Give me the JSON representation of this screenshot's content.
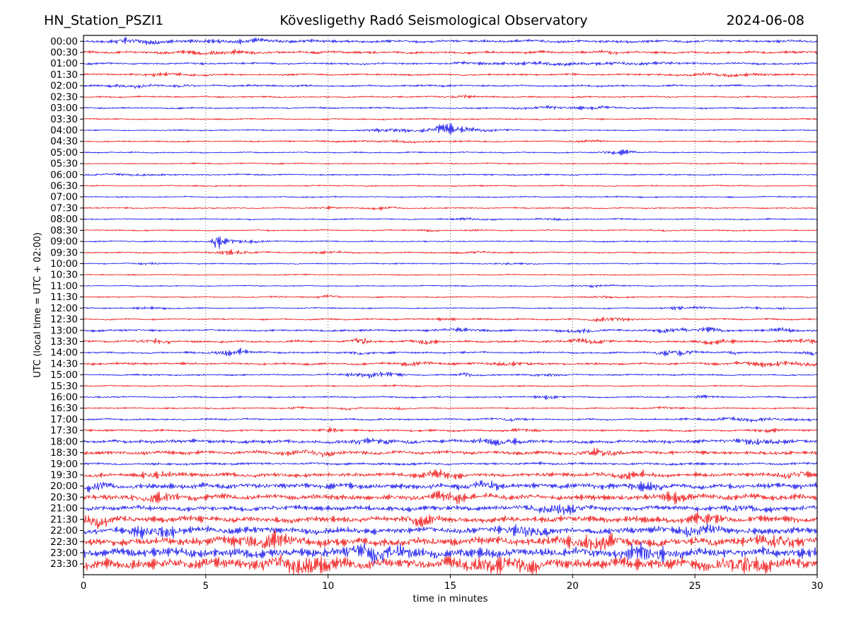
{
  "header": {
    "station": "HN_Station_PSZI1",
    "observatory": "Kövesligethy Radó Seismological Observatory",
    "date": "2024-06-08"
  },
  "chart_data": {
    "type": "line",
    "subtype": "helicorder-seismogram-drum-plot",
    "title": "HN_Station_PSZI1 | Kövesligethy Radó Seismological Observatory | 2024-06-08",
    "xlabel": "time in minutes",
    "ylabel": "UTC (local time = UTC + 02:00)",
    "xlim": [
      0,
      30
    ],
    "xticks": [
      0,
      5,
      10,
      15,
      20,
      25,
      30
    ],
    "grid": {
      "vertical_dotted_at_minutes": [
        5,
        10,
        15,
        20,
        25
      ]
    },
    "minutes_per_row": 30,
    "trace_colors": {
      "blue": "#0000ee",
      "red": "#ee0000"
    },
    "frame_color": "#000000",
    "amplitude_note": "amp = baseline noise half-amplitude (px at 34.6 px/min). events = transient seismic bursts {t: center minute, a: extra amplitude px, w: sigma minutes}",
    "rows": [
      {
        "label": "00:00",
        "color": "blue",
        "amp": 1.8,
        "events": [
          {
            "t": 1.6,
            "a": 2.0,
            "w": 0.4
          },
          {
            "t": 2.7,
            "a": 2.2,
            "w": 0.5
          },
          {
            "t": 6.5,
            "a": 1.2,
            "w": 2.0
          }
        ]
      },
      {
        "label": "00:30",
        "color": "red",
        "amp": 1.7,
        "events": [
          {
            "t": 5.3,
            "a": 1.6,
            "w": 1.2
          },
          {
            "t": 21.5,
            "a": 1.8,
            "w": 0.3
          }
        ]
      },
      {
        "label": "01:00",
        "color": "blue",
        "amp": 1.4,
        "events": [
          {
            "t": 20.0,
            "a": 1.2,
            "w": 3.0
          }
        ]
      },
      {
        "label": "01:30",
        "color": "red",
        "amp": 1.2,
        "events": [
          {
            "t": 3.5,
            "a": 1.4,
            "w": 1.0
          },
          {
            "t": 26.0,
            "a": 1.4,
            "w": 1.5
          }
        ]
      },
      {
        "label": "02:00",
        "color": "blue",
        "amp": 1.3,
        "events": [
          {
            "t": 2.2,
            "a": 1.6,
            "w": 0.8
          },
          {
            "t": 4.2,
            "a": 2.4,
            "w": 0.25
          }
        ]
      },
      {
        "label": "02:30",
        "color": "red",
        "amp": 1.0,
        "events": [
          {
            "t": 15.5,
            "a": 1.3,
            "w": 0.4
          }
        ]
      },
      {
        "label": "03:00",
        "color": "blue",
        "amp": 1.1,
        "events": [
          {
            "t": 19.5,
            "a": 1.5,
            "w": 1.2
          },
          {
            "t": 21.2,
            "a": 1.6,
            "w": 0.4
          }
        ]
      },
      {
        "label": "03:30",
        "color": "red",
        "amp": 0.9,
        "events": []
      },
      {
        "label": "04:00",
        "color": "blue",
        "amp": 0.85,
        "events": [
          {
            "t": 12.2,
            "a": 2.0,
            "w": 0.6
          },
          {
            "t": 13.0,
            "a": 1.5,
            "w": 0.4
          },
          {
            "t": 14.9,
            "a": 5.0,
            "w": 0.55
          },
          {
            "t": 15.8,
            "a": 1.8,
            "w": 1.0
          }
        ]
      },
      {
        "label": "04:30",
        "color": "red",
        "amp": 0.85,
        "events": [
          {
            "t": 13.0,
            "a": 1.1,
            "w": 2.2
          },
          {
            "t": 20.6,
            "a": 1.6,
            "w": 0.4
          }
        ]
      },
      {
        "label": "05:00",
        "color": "blue",
        "amp": 0.85,
        "events": [
          {
            "t": 22.0,
            "a": 2.2,
            "w": 0.5
          }
        ]
      },
      {
        "label": "05:30",
        "color": "red",
        "amp": 0.85,
        "events": []
      },
      {
        "label": "06:00",
        "color": "blue",
        "amp": 0.95,
        "events": [
          {
            "t": 1.5,
            "a": 1.0,
            "w": 1.2
          }
        ]
      },
      {
        "label": "06:30",
        "color": "red",
        "amp": 0.85,
        "events": []
      },
      {
        "label": "07:00",
        "color": "blue",
        "amp": 0.85,
        "events": []
      },
      {
        "label": "07:30",
        "color": "red",
        "amp": 0.9,
        "events": [
          {
            "t": 10.0,
            "a": 1.4,
            "w": 0.25
          },
          {
            "t": 12.3,
            "a": 1.5,
            "w": 0.4
          }
        ]
      },
      {
        "label": "08:00",
        "color": "blue",
        "amp": 0.9,
        "events": [
          {
            "t": 15.8,
            "a": 1.2,
            "w": 0.4
          },
          {
            "t": 19.0,
            "a": 1.1,
            "w": 0.5
          }
        ]
      },
      {
        "label": "08:30",
        "color": "red",
        "amp": 0.85,
        "events": [
          {
            "t": 14.2,
            "a": 1.4,
            "w": 0.25
          },
          {
            "t": 16.2,
            "a": 1.4,
            "w": 0.25
          },
          {
            "t": 23.5,
            "a": 1.2,
            "w": 0.3
          }
        ]
      },
      {
        "label": "09:00",
        "color": "blue",
        "amp": 0.85,
        "events": [
          {
            "t": 5.45,
            "a": 9.0,
            "w": 0.12
          },
          {
            "t": 5.8,
            "a": 2.6,
            "w": 0.3
          },
          {
            "t": 6.6,
            "a": 1.5,
            "w": 0.7
          }
        ]
      },
      {
        "label": "09:30",
        "color": "red",
        "amp": 0.9,
        "events": [
          {
            "t": 5.9,
            "a": 2.6,
            "w": 0.45
          },
          {
            "t": 6.7,
            "a": 1.6,
            "w": 0.45
          },
          {
            "t": 10.2,
            "a": 1.1,
            "w": 0.7
          },
          {
            "t": 16.0,
            "a": 1.0,
            "w": 0.7
          }
        ]
      },
      {
        "label": "10:00",
        "color": "blue",
        "amp": 0.75,
        "events": [
          {
            "t": 2.7,
            "a": 1.1,
            "w": 0.5
          },
          {
            "t": 17.5,
            "a": 1.0,
            "w": 0.5
          }
        ]
      },
      {
        "label": "10:30",
        "color": "red",
        "amp": 0.7,
        "events": []
      },
      {
        "label": "11:00",
        "color": "blue",
        "amp": 0.7,
        "events": [
          {
            "t": 21.0,
            "a": 1.0,
            "w": 0.8
          }
        ]
      },
      {
        "label": "11:30",
        "color": "red",
        "amp": 0.8,
        "events": [
          {
            "t": 8.0,
            "a": 1.1,
            "w": 0.25
          },
          {
            "t": 10.0,
            "a": 1.5,
            "w": 0.5
          },
          {
            "t": 21.3,
            "a": 1.5,
            "w": 0.4
          }
        ]
      },
      {
        "label": "12:00",
        "color": "blue",
        "amp": 0.8,
        "events": [
          {
            "t": 2.8,
            "a": 1.2,
            "w": 0.6
          },
          {
            "t": 24.2,
            "a": 2.0,
            "w": 0.3
          },
          {
            "t": 25.2,
            "a": 1.8,
            "w": 0.25
          },
          {
            "t": 27.3,
            "a": 1.7,
            "w": 0.3
          },
          {
            "t": 28.6,
            "a": 1.3,
            "w": 0.25
          }
        ]
      },
      {
        "label": "12:30",
        "color": "red",
        "amp": 1.05,
        "events": [
          {
            "t": 14.8,
            "a": 1.3,
            "w": 0.4
          },
          {
            "t": 21.6,
            "a": 2.4,
            "w": 0.7
          }
        ]
      },
      {
        "label": "13:00",
        "color": "blue",
        "amp": 1.5,
        "events": [
          {
            "t": 15.3,
            "a": 2.0,
            "w": 0.4
          },
          {
            "t": 20.3,
            "a": 2.2,
            "w": 0.4
          },
          {
            "t": 24.0,
            "a": 2.2,
            "w": 0.5
          },
          {
            "t": 25.6,
            "a": 2.4,
            "w": 0.4
          },
          {
            "t": 28.5,
            "a": 1.8,
            "w": 0.4
          }
        ]
      },
      {
        "label": "13:30",
        "color": "red",
        "amp": 1.5,
        "events": [
          {
            "t": 2.9,
            "a": 2.4,
            "w": 0.55
          },
          {
            "t": 11.4,
            "a": 3.4,
            "w": 0.25
          },
          {
            "t": 14.0,
            "a": 2.0,
            "w": 0.4
          },
          {
            "t": 20.5,
            "a": 2.0,
            "w": 0.7
          },
          {
            "t": 26.0,
            "a": 1.8,
            "w": 0.5
          },
          {
            "t": 29.5,
            "a": 2.6,
            "w": 0.5
          }
        ]
      },
      {
        "label": "14:00",
        "color": "blue",
        "amp": 1.25,
        "events": [
          {
            "t": 6.1,
            "a": 2.9,
            "w": 0.55
          },
          {
            "t": 11.3,
            "a": 1.5,
            "w": 0.3
          },
          {
            "t": 24.2,
            "a": 3.1,
            "w": 0.55
          },
          {
            "t": 26.6,
            "a": 1.6,
            "w": 0.25
          },
          {
            "t": 29.8,
            "a": 1.8,
            "w": 0.3
          }
        ]
      },
      {
        "label": "14:30",
        "color": "red",
        "amp": 1.55,
        "events": [
          {
            "t": 13.5,
            "a": 1.8,
            "w": 0.5
          },
          {
            "t": 17.5,
            "a": 1.8,
            "w": 0.7
          },
          {
            "t": 28.5,
            "a": 2.4,
            "w": 1.2
          }
        ]
      },
      {
        "label": "15:00",
        "color": "blue",
        "amp": 1.05,
        "events": [
          {
            "t": 11.6,
            "a": 2.5,
            "w": 0.7
          },
          {
            "t": 12.4,
            "a": 2.0,
            "w": 0.4
          },
          {
            "t": 15.6,
            "a": 2.8,
            "w": 0.18
          },
          {
            "t": 19.0,
            "a": 1.5,
            "w": 0.5
          }
        ]
      },
      {
        "label": "15:30",
        "color": "red",
        "amp": 0.9,
        "events": [
          {
            "t": 13.2,
            "a": 1.2,
            "w": 0.4
          }
        ]
      },
      {
        "label": "16:00",
        "color": "blue",
        "amp": 1.05,
        "events": [
          {
            "t": 19.0,
            "a": 2.1,
            "w": 0.4
          },
          {
            "t": 25.4,
            "a": 1.8,
            "w": 0.25
          }
        ]
      },
      {
        "label": "16:30",
        "color": "red",
        "amp": 0.95,
        "events": [
          {
            "t": 8.7,
            "a": 1.8,
            "w": 0.25
          },
          {
            "t": 10.9,
            "a": 1.5,
            "w": 0.3
          },
          {
            "t": 13.0,
            "a": 1.5,
            "w": 0.3
          },
          {
            "t": 23.8,
            "a": 1.3,
            "w": 0.3
          }
        ]
      },
      {
        "label": "17:00",
        "color": "blue",
        "amp": 1.15,
        "events": [
          {
            "t": 17.5,
            "a": 1.4,
            "w": 0.5
          },
          {
            "t": 27.5,
            "a": 1.8,
            "w": 1.5
          }
        ]
      },
      {
        "label": "17:30",
        "color": "red",
        "amp": 1.3,
        "events": [
          {
            "t": 10.0,
            "a": 2.2,
            "w": 0.3
          },
          {
            "t": 18.0,
            "a": 1.6,
            "w": 0.4
          },
          {
            "t": 28.0,
            "a": 1.6,
            "w": 0.4
          }
        ]
      },
      {
        "label": "18:00",
        "color": "blue",
        "amp": 2.3,
        "events": [
          {
            "t": 12.0,
            "a": 2.6,
            "w": 0.8
          },
          {
            "t": 17.0,
            "a": 2.4,
            "w": 0.7
          },
          {
            "t": 27.5,
            "a": 2.6,
            "w": 0.7
          }
        ]
      },
      {
        "label": "18:30",
        "color": "red",
        "amp": 2.5,
        "events": [
          {
            "t": 9.5,
            "a": 2.8,
            "w": 0.7
          },
          {
            "t": 21.0,
            "a": 2.8,
            "w": 0.7
          }
        ]
      },
      {
        "label": "19:00",
        "color": "blue",
        "amp": 1.6,
        "events": []
      },
      {
        "label": "19:30",
        "color": "red",
        "amp": 2.7,
        "events": [
          {
            "t": 3.0,
            "a": 4.2,
            "w": 0.4
          },
          {
            "t": 14.5,
            "a": 3.2,
            "w": 0.5
          },
          {
            "t": 22.5,
            "a": 3.2,
            "w": 0.5
          },
          {
            "t": 29.0,
            "a": 3.6,
            "w": 0.4
          }
        ]
      },
      {
        "label": "20:00",
        "color": "blue",
        "amp": 3.4,
        "events": [
          {
            "t": 0.5,
            "a": 4.5,
            "w": 0.35
          },
          {
            "t": 16.5,
            "a": 4.0,
            "w": 0.45
          },
          {
            "t": 23.0,
            "a": 4.0,
            "w": 0.45
          }
        ]
      },
      {
        "label": "20:30",
        "color": "red",
        "amp": 3.6,
        "events": [
          {
            "t": 3.0,
            "a": 4.5,
            "w": 0.5
          },
          {
            "t": 15.0,
            "a": 4.5,
            "w": 0.6
          },
          {
            "t": 24.0,
            "a": 4.5,
            "w": 0.5
          }
        ]
      },
      {
        "label": "21:00",
        "color": "blue",
        "amp": 3.2,
        "events": [
          {
            "t": 19.5,
            "a": 5.0,
            "w": 0.7
          },
          {
            "t": 27.0,
            "a": 3.6,
            "w": 0.5
          }
        ]
      },
      {
        "label": "21:30",
        "color": "red",
        "amp": 3.8,
        "events": [
          {
            "t": 0.5,
            "a": 5.5,
            "w": 0.35
          },
          {
            "t": 13.8,
            "a": 4.5,
            "w": 0.45
          },
          {
            "t": 25.5,
            "a": 5.5,
            "w": 0.45
          }
        ]
      },
      {
        "label": "22:00",
        "color": "blue",
        "amp": 4.2,
        "events": [
          {
            "t": 3.0,
            "a": 5.5,
            "w": 0.7
          },
          {
            "t": 18.0,
            "a": 5.0,
            "w": 0.6
          },
          {
            "t": 25.0,
            "a": 5.0,
            "w": 0.5
          }
        ]
      },
      {
        "label": "22:30",
        "color": "red",
        "amp": 5.2,
        "events": [
          {
            "t": 7.5,
            "a": 7.0,
            "w": 0.9
          },
          {
            "t": 21.0,
            "a": 6.0,
            "w": 0.7
          },
          {
            "t": 28.5,
            "a": 6.0,
            "w": 0.5
          }
        ]
      },
      {
        "label": "23:00",
        "color": "blue",
        "amp": 5.6,
        "events": [
          {
            "t": 12.0,
            "a": 7.0,
            "w": 0.9
          },
          {
            "t": 23.0,
            "a": 6.0,
            "w": 0.7
          }
        ]
      },
      {
        "label": "23:30",
        "color": "red",
        "amp": 6.5,
        "events": [
          {
            "t": 9.0,
            "a": 8.0,
            "w": 1.0
          },
          {
            "t": 17.0,
            "a": 7.0,
            "w": 0.9
          },
          {
            "t": 27.0,
            "a": 8.5,
            "w": 0.7
          }
        ]
      }
    ]
  }
}
